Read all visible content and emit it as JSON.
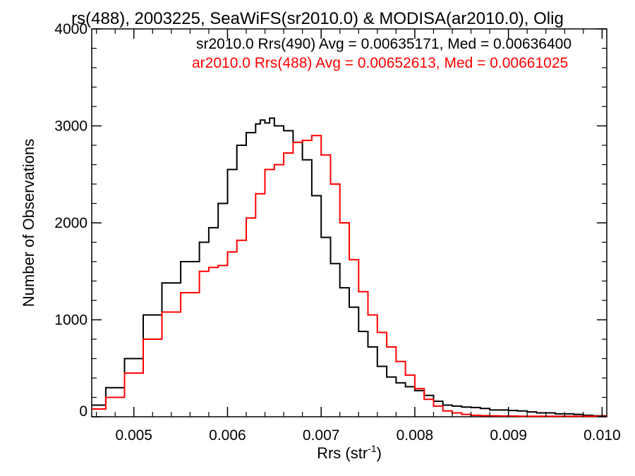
{
  "chart_data": {
    "type": "line",
    "style": "histogram-step",
    "title": "rs(488), 2003225, SeaWiFS(sr2010.0) & MODISA(ar2010.0), Olig",
    "xlabel_main": "Rrs (str",
    "xlabel_sup": "-1",
    "xlabel_close": ")",
    "ylabel": "Number of Observations",
    "xlim": [
      0.00455,
      0.01005
    ],
    "ylim": [
      0,
      4000
    ],
    "x_ticks": [
      0.005,
      0.006,
      0.007,
      0.008,
      0.009,
      0.01
    ],
    "x_tick_labels": [
      "0.005",
      "0.006",
      "0.007",
      "0.008",
      "0.009",
      "0.010"
    ],
    "y_ticks": [
      0,
      1000,
      2000,
      3000,
      4000
    ],
    "y_tick_labels": [
      "0",
      "1000",
      "2000",
      "3000",
      "4000"
    ],
    "legend_position": "top-right",
    "grid": false,
    "series": [
      {
        "name": "sr2010.0 Rrs(490) Avg = 0.00635171, Med = 0.00636400",
        "color": "#000000",
        "x": [
          0.00455,
          0.0047,
          0.0049,
          0.0051,
          0.0053,
          0.0055,
          0.0057,
          0.0058,
          0.0059,
          0.006,
          0.0061,
          0.0062,
          0.0063,
          0.00635,
          0.0064,
          0.00645,
          0.0065,
          0.0066,
          0.0067,
          0.0068,
          0.0069,
          0.007,
          0.0071,
          0.0072,
          0.0073,
          0.0074,
          0.0075,
          0.0076,
          0.0077,
          0.0078,
          0.0079,
          0.008,
          0.0081,
          0.0082,
          0.0083,
          0.0084,
          0.0085,
          0.0086,
          0.0087,
          0.0088,
          0.0089,
          0.009,
          0.0091,
          0.0092,
          0.0093,
          0.0094,
          0.0095,
          0.0096,
          0.0097,
          0.0098,
          0.0099,
          0.01
        ],
        "y": [
          120,
          300,
          600,
          1050,
          1380,
          1600,
          1800,
          1950,
          2200,
          2550,
          2800,
          2930,
          3020,
          3060,
          3030,
          3080,
          3000,
          2950,
          2830,
          2650,
          2280,
          1850,
          1580,
          1330,
          1130,
          880,
          720,
          520,
          410,
          350,
          310,
          270,
          220,
          160,
          120,
          110,
          100,
          95,
          85,
          70,
          70,
          65,
          60,
          50,
          40,
          40,
          30,
          30,
          25,
          15,
          10,
          10
        ]
      },
      {
        "name": "ar2010.0 Rrs(488) Avg = 0.00652613, Med = 0.00661025",
        "color": "#ff0000",
        "x": [
          0.00455,
          0.0047,
          0.0049,
          0.0051,
          0.0053,
          0.0055,
          0.0057,
          0.0058,
          0.0059,
          0.006,
          0.0061,
          0.0062,
          0.0063,
          0.0064,
          0.0065,
          0.0066,
          0.0067,
          0.0068,
          0.0069,
          0.007,
          0.0071,
          0.0072,
          0.0073,
          0.0074,
          0.0075,
          0.0076,
          0.0077,
          0.0078,
          0.0079,
          0.008,
          0.0081,
          0.0082,
          0.0083,
          0.0084,
          0.0085,
          0.0086,
          0.0087,
          0.0088,
          0.0089,
          0.009,
          0.0091,
          0.0092,
          0.0093,
          0.0094,
          0.0095,
          0.0096,
          0.0097,
          0.0098,
          0.0099,
          0.01
        ],
        "y": [
          80,
          200,
          450,
          800,
          1080,
          1280,
          1500,
          1540,
          1560,
          1700,
          1820,
          2050,
          2300,
          2550,
          2600,
          2720,
          2830,
          2850,
          2900,
          2700,
          2400,
          2000,
          1620,
          1290,
          1050,
          870,
          720,
          570,
          430,
          290,
          180,
          110,
          60,
          40,
          25,
          15,
          12,
          10,
          8,
          7,
          6,
          6,
          5,
          5,
          5,
          5,
          5,
          5,
          5,
          5
        ]
      }
    ]
  }
}
